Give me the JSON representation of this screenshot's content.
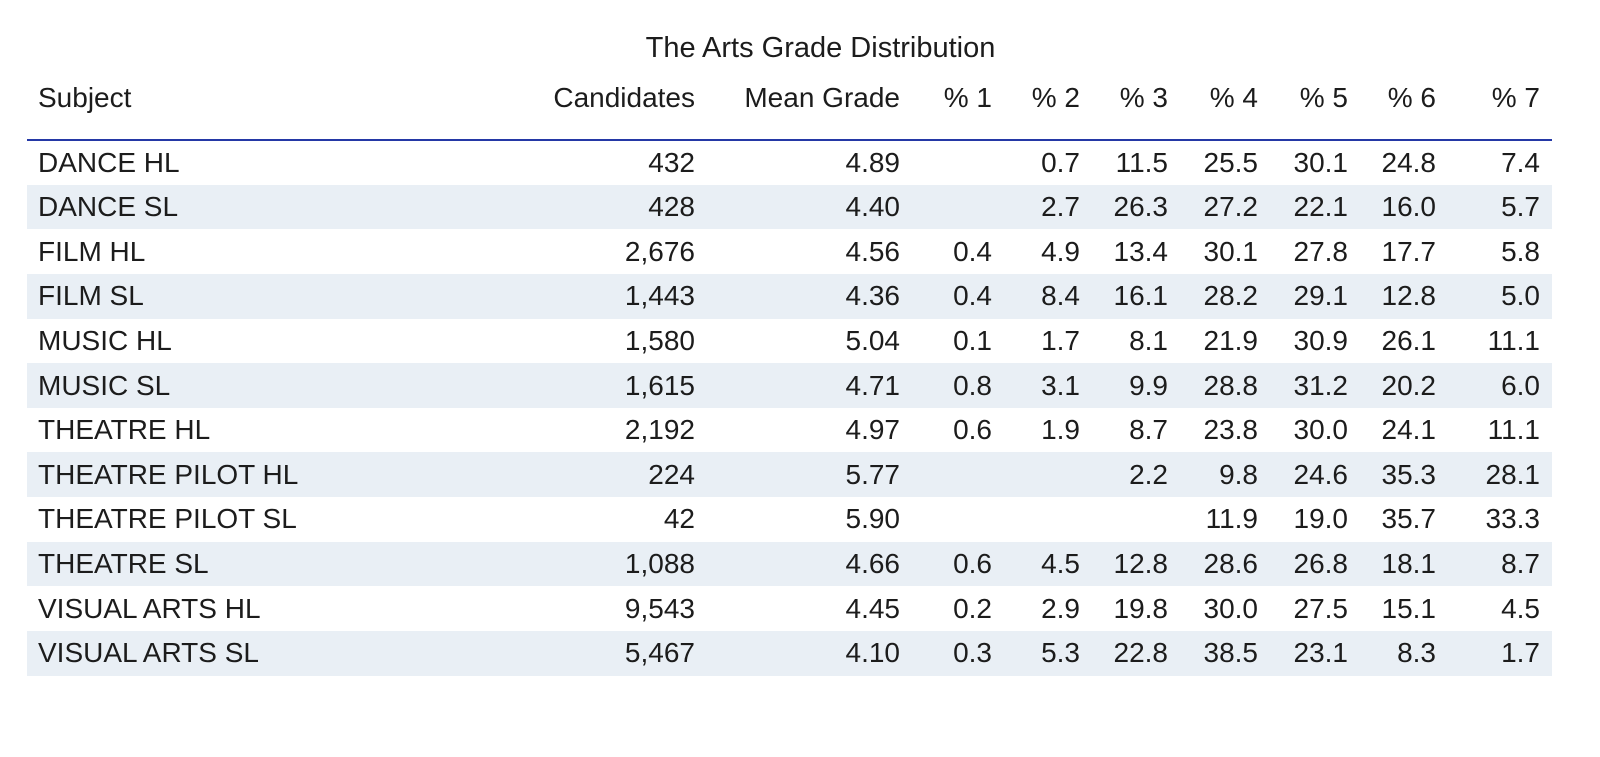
{
  "title": "The Arts Grade Distribution",
  "colors": {
    "header_rule": "#2438a6",
    "row_alt": "#e9eff5",
    "text": "#1c1c1c",
    "background": "#ffffff"
  },
  "chart_data": {
    "type": "table",
    "title": "The Arts Grade Distribution",
    "columns": [
      "Subject",
      "Candidates",
      "Mean Grade",
      "% 1",
      "% 2",
      "% 3",
      "% 4",
      "% 5",
      "% 6",
      "% 7"
    ],
    "rows": [
      [
        "DANCE HL",
        "432",
        "4.89",
        "",
        "0.7",
        "11.5",
        "25.5",
        "30.1",
        "24.8",
        "7.4"
      ],
      [
        "DANCE SL",
        "428",
        "4.40",
        "",
        "2.7",
        "26.3",
        "27.2",
        "22.1",
        "16.0",
        "5.7"
      ],
      [
        "FILM HL",
        "2,676",
        "4.56",
        "0.4",
        "4.9",
        "13.4",
        "30.1",
        "27.8",
        "17.7",
        "5.8"
      ],
      [
        "FILM SL",
        "1,443",
        "4.36",
        "0.4",
        "8.4",
        "16.1",
        "28.2",
        "29.1",
        "12.8",
        "5.0"
      ],
      [
        "MUSIC HL",
        "1,580",
        "5.04",
        "0.1",
        "1.7",
        "8.1",
        "21.9",
        "30.9",
        "26.1",
        "11.1"
      ],
      [
        "MUSIC SL",
        "1,615",
        "4.71",
        "0.8",
        "3.1",
        "9.9",
        "28.8",
        "31.2",
        "20.2",
        "6.0"
      ],
      [
        "THEATRE HL",
        "2,192",
        "4.97",
        "0.6",
        "1.9",
        "8.7",
        "23.8",
        "30.0",
        "24.1",
        "11.1"
      ],
      [
        "THEATRE PILOT HL",
        "224",
        "5.77",
        "",
        "",
        "2.2",
        "9.8",
        "24.6",
        "35.3",
        "28.1"
      ],
      [
        "THEATRE PILOT SL",
        "42",
        "5.90",
        "",
        "",
        "",
        "11.9",
        "19.0",
        "35.7",
        "33.3"
      ],
      [
        "THEATRE SL",
        "1,088",
        "4.66",
        "0.6",
        "4.5",
        "12.8",
        "28.6",
        "26.8",
        "18.1",
        "8.7"
      ],
      [
        "VISUAL ARTS HL",
        "9,543",
        "4.45",
        "0.2",
        "2.9",
        "19.8",
        "30.0",
        "27.5",
        "15.1",
        "4.5"
      ],
      [
        "VISUAL ARTS SL",
        "5,467",
        "4.10",
        "0.3",
        "5.3",
        "22.8",
        "38.5",
        "23.1",
        "8.3",
        "1.7"
      ]
    ],
    "layout": {
      "row_striping": "even rows shaded light blue",
      "header_rule_color": "#2438a6",
      "numeric_alignment": "right",
      "subject_alignment": "left"
    }
  }
}
